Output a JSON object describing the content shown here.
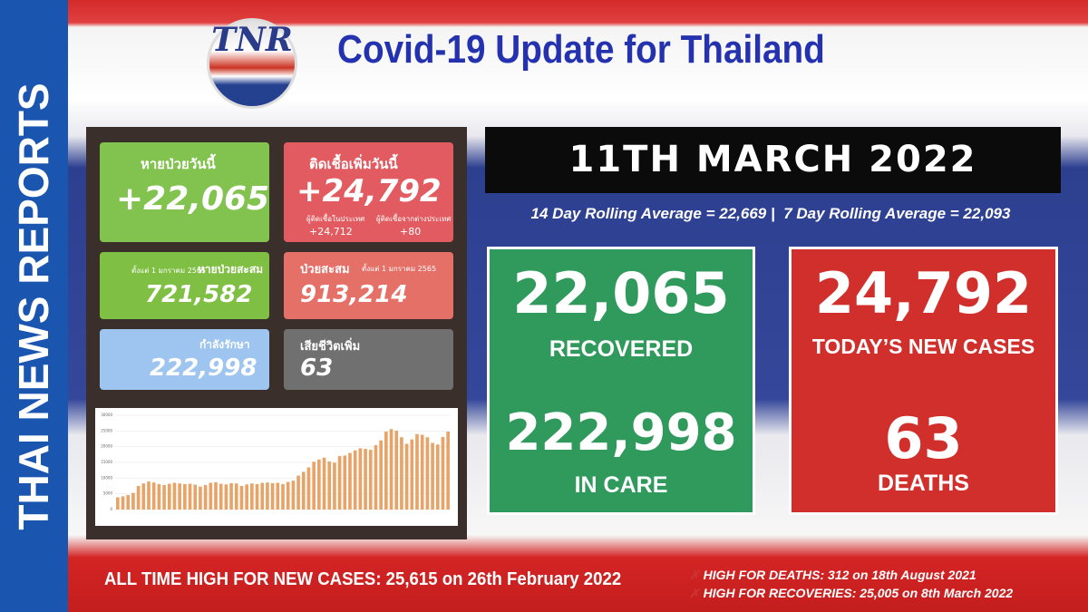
{
  "sidebar": "THAI NEWS REPORTS",
  "header": {
    "logo": "TNR",
    "title": "Covid-19 Update for Thailand"
  },
  "tiles": {
    "recovered_today": {
      "label": "หายป่วยวันนี้",
      "value": "+22,065"
    },
    "new_cases_today": {
      "label": "ติดเชื้อเพิ่มวันนี้",
      "value": "+24,792",
      "domestic_label": "ผู้ติดเชื้อในประเทศ",
      "domestic": "+24,712",
      "imported_label": "ผู้ติดเชื้อจากต่างประเทศ",
      "imported": "+80"
    },
    "recovered_total": {
      "note": "ตั้งแต่ 1 มกราคม 2565",
      "label": "หายป่วยสะสม",
      "value": "721,582"
    },
    "cases_total": {
      "label": "ป่วยสะสม",
      "note": "ตั้งแต่ 1 มกราคม 2565",
      "value": "913,214"
    },
    "in_care": {
      "label": "กำลังรักษา",
      "value": "222,998"
    },
    "deaths": {
      "label": "เสียชีวิตเพิ่ม",
      "value": "63"
    }
  },
  "date": "11TH MARCH 2022",
  "rolling": {
    "fourteen_day": "14 Day Rolling Average = 22,669 |",
    "seven_day": "7 Day Rolling Average = 22,093"
  },
  "cards": {
    "recovered": {
      "value": "22,065",
      "label": "RECOVERED"
    },
    "in_care": {
      "value": "222,998",
      "label": "IN CARE"
    },
    "new_cases": {
      "value": "24,792",
      "label": "TODAY’S NEW CASES"
    },
    "deaths": {
      "value": "63",
      "label": "DEATHS"
    }
  },
  "chart_data": {
    "type": "bar",
    "color": "#e8a468",
    "values": [
      3900,
      4200,
      4600,
      5300,
      7500,
      8300,
      8900,
      8600,
      8100,
      7800,
      8200,
      8500,
      8300,
      8100,
      8200,
      7900,
      7300,
      7800,
      8500,
      8700,
      8200,
      8000,
      8400,
      8300,
      7500,
      8000,
      8300,
      8100,
      8500,
      8600,
      8400,
      8500,
      8100,
      8800,
      9200,
      10800,
      12000,
      13400,
      15200,
      15900,
      16500,
      15300,
      14900,
      17000,
      17200,
      18000,
      18800,
      19500,
      19300,
      19000,
      20500,
      22000,
      24800,
      25600,
      25100,
      23000,
      20900,
      22300,
      24000,
      23800,
      23000,
      21200,
      20700,
      23100,
      24800
    ],
    "ylim": [
      0,
      30000
    ],
    "yticks": [
      0,
      5000,
      10000,
      15000,
      20000,
      25000,
      30000
    ],
    "grid": true
  },
  "footer": {
    "all_time_high": "ALL TIME HIGH FOR NEW CASES: 25,615 on 26th February 2022",
    "high_deaths": "HIGH FOR DEATHS: 312 on 18th August 2021",
    "high_recoveries": "HIGH FOR RECOVERIES: 25,005 on 8th March 2022"
  }
}
